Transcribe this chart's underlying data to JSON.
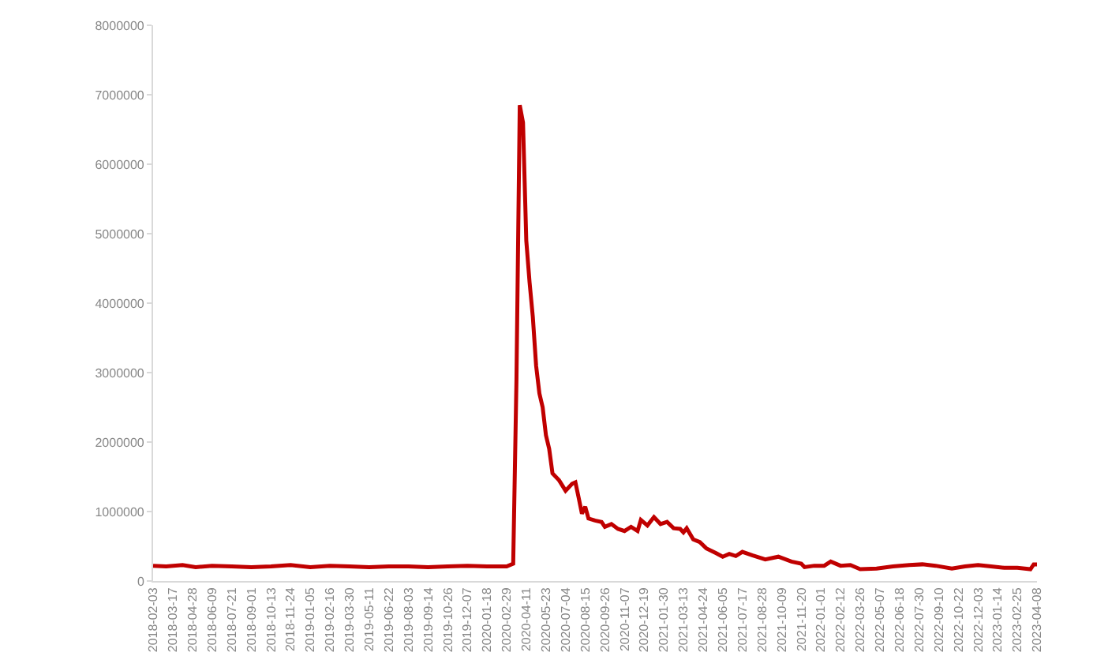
{
  "chart_data": {
    "type": "line",
    "x": [
      "2018-02-03",
      "2018-03-03",
      "2018-04-07",
      "2018-05-05",
      "2018-06-09",
      "2018-07-21",
      "2018-09-01",
      "2018-10-13",
      "2018-11-24",
      "2019-01-05",
      "2019-02-16",
      "2019-03-30",
      "2019-05-11",
      "2019-06-22",
      "2019-08-03",
      "2019-09-14",
      "2019-10-26",
      "2019-12-07",
      "2020-01-18",
      "2020-02-29",
      "2020-03-14",
      "2020-03-21",
      "2020-03-28",
      "2020-04-04",
      "2020-04-11",
      "2020-04-18",
      "2020-04-25",
      "2020-05-02",
      "2020-05-09",
      "2020-05-16",
      "2020-05-23",
      "2020-05-30",
      "2020-06-06",
      "2020-06-20",
      "2020-07-04",
      "2020-07-18",
      "2020-07-25",
      "2020-08-01",
      "2020-08-08",
      "2020-08-15",
      "2020-08-22",
      "2020-09-05",
      "2020-09-19",
      "2020-09-26",
      "2020-10-10",
      "2020-10-24",
      "2020-11-07",
      "2020-11-21",
      "2020-12-05",
      "2020-12-12",
      "2020-12-26",
      "2021-01-09",
      "2021-01-23",
      "2021-02-06",
      "2021-02-20",
      "2021-03-06",
      "2021-03-13",
      "2021-03-20",
      "2021-04-03",
      "2021-04-17",
      "2021-05-01",
      "2021-05-22",
      "2021-06-05",
      "2021-06-19",
      "2021-07-03",
      "2021-07-17",
      "2021-08-07",
      "2021-09-04",
      "2021-10-02",
      "2021-10-30",
      "2021-11-20",
      "2021-11-27",
      "2021-12-18",
      "2022-01-08",
      "2022-01-22",
      "2022-02-12",
      "2022-03-05",
      "2022-03-26",
      "2022-04-30",
      "2022-06-04",
      "2022-07-09",
      "2022-08-06",
      "2022-09-03",
      "2022-10-08",
      "2022-11-05",
      "2022-12-03",
      "2022-12-31",
      "2023-01-28",
      "2023-02-25",
      "2023-03-25",
      "2023-04-01",
      "2023-04-08"
    ],
    "series": [
      {
        "color": "#c00000",
        "values": [
          220000,
          210000,
          230000,
          200000,
          220000,
          210000,
          200000,
          210000,
          230000,
          200000,
          220000,
          210000,
          200000,
          210000,
          210000,
          200000,
          210000,
          220000,
          210000,
          210000,
          250000,
          2900000,
          6850000,
          6600000,
          4900000,
          4300000,
          3800000,
          3100000,
          2700000,
          2500000,
          2100000,
          1900000,
          1550000,
          1450000,
          1300000,
          1400000,
          1420000,
          1200000,
          970000,
          1070000,
          900000,
          870000,
          850000,
          780000,
          820000,
          750000,
          720000,
          780000,
          720000,
          880000,
          800000,
          920000,
          820000,
          850000,
          760000,
          750000,
          700000,
          760000,
          600000,
          560000,
          470000,
          400000,
          350000,
          390000,
          360000,
          420000,
          370000,
          310000,
          350000,
          280000,
          250000,
          200000,
          220000,
          220000,
          280000,
          220000,
          230000,
          170000,
          180000,
          210000,
          230000,
          240000,
          220000,
          180000,
          210000,
          230000,
          210000,
          190000,
          190000,
          170000,
          240000,
          240000
        ]
      }
    ],
    "xlim": [
      "2018-02-03",
      "2023-04-08"
    ],
    "xticks": [
      {
        "value": "2018-02-03",
        "label": "2018-02-03"
      },
      {
        "value": "2018-03-17",
        "label": "2018-03-17"
      },
      {
        "value": "2018-04-28",
        "label": "2018-04-28"
      },
      {
        "value": "2018-06-09",
        "label": "2018-06-09"
      },
      {
        "value": "2018-07-21",
        "label": "2018-07-21"
      },
      {
        "value": "2018-09-01",
        "label": "2018-09-01"
      },
      {
        "value": "2018-10-13",
        "label": "2018-10-13"
      },
      {
        "value": "2018-11-24",
        "label": "2018-11-24"
      },
      {
        "value": "2019-01-05",
        "label": "2019-01-05"
      },
      {
        "value": "2019-02-16",
        "label": "2019-02-16"
      },
      {
        "value": "2019-03-30",
        "label": "2019-03-30"
      },
      {
        "value": "2019-05-11",
        "label": "2019-05-11"
      },
      {
        "value": "2019-06-22",
        "label": "2019-06-22"
      },
      {
        "value": "2019-08-03",
        "label": "2019-08-03"
      },
      {
        "value": "2019-09-14",
        "label": "2019-09-14"
      },
      {
        "value": "2019-10-26",
        "label": "2019-10-26"
      },
      {
        "value": "2019-12-07",
        "label": "2019-12-07"
      },
      {
        "value": "2020-01-18",
        "label": "2020-01-18"
      },
      {
        "value": "2020-02-29",
        "label": "2020-02-29"
      },
      {
        "value": "2020-04-11",
        "label": "2020-04-11"
      },
      {
        "value": "2020-05-23",
        "label": "2020-05-23"
      },
      {
        "value": "2020-07-04",
        "label": "2020-07-04"
      },
      {
        "value": "2020-08-15",
        "label": "2020-08-15"
      },
      {
        "value": "2020-09-26",
        "label": "2020-09-26"
      },
      {
        "value": "2020-11-07",
        "label": "2020-11-07"
      },
      {
        "value": "2020-12-19",
        "label": "2020-12-19"
      },
      {
        "value": "2021-01-30",
        "label": "2021-01-30"
      },
      {
        "value": "2021-03-13",
        "label": "2021-03-13"
      },
      {
        "value": "2021-04-24",
        "label": "2021-04-24"
      },
      {
        "value": "2021-06-05",
        "label": "2021-06-05"
      },
      {
        "value": "2021-07-17",
        "label": "2021-07-17"
      },
      {
        "value": "2021-08-28",
        "label": "2021-08-28"
      },
      {
        "value": "2021-10-09",
        "label": "2021-10-09"
      },
      {
        "value": "2021-11-20",
        "label": "2021-11-20"
      },
      {
        "value": "2022-01-01",
        "label": "2022-01-01"
      },
      {
        "value": "2022-02-12",
        "label": "2022-02-12"
      },
      {
        "value": "2022-03-26",
        "label": "2022-03-26"
      },
      {
        "value": "2022-05-07",
        "label": "2022-05-07"
      },
      {
        "value": "2022-06-18",
        "label": "2022-06-18"
      },
      {
        "value": "2022-07-30",
        "label": "2022-07-30"
      },
      {
        "value": "2022-09-10",
        "label": "2022-09-10"
      },
      {
        "value": "2022-10-22",
        "label": "2022-10-22"
      },
      {
        "value": "2022-12-03",
        "label": "2022-12-03"
      },
      {
        "value": "2023-01-14",
        "label": "2023-01-14"
      },
      {
        "value": "2023-02-25",
        "label": "2023-02-25"
      },
      {
        "value": "2023-04-08",
        "label": "2023-04-08"
      }
    ],
    "ylim": [
      0,
      8000000
    ],
    "yticks": [
      0,
      1000000,
      2000000,
      3000000,
      4000000,
      5000000,
      6000000,
      7000000,
      8000000
    ],
    "marker": "none",
    "line_style": "solid"
  }
}
